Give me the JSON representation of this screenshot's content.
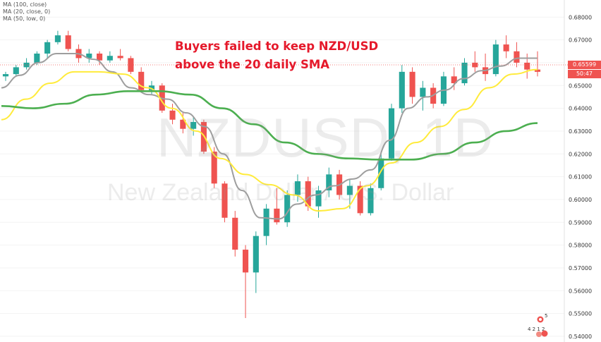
{
  "legend": [
    {
      "label": "MA (100, close)"
    },
    {
      "label": "MA (20, close, 0)"
    },
    {
      "label": "MA (50, low, 0)"
    }
  ],
  "headline": {
    "line1": "Buyers failed to keep NZD/USD",
    "line2": "above the 20 daily SMA"
  },
  "watermark": {
    "symbol": "NZDUSD, 1D",
    "name": "New Zealand Dollar / U.S. Dollar"
  },
  "last_price": {
    "value": "0.65599",
    "countdown": "50:47",
    "color": "#ef5350"
  },
  "badges": {
    "top": "5",
    "bottom": "4 2 1 2"
  },
  "colors": {
    "bull": "#26a69a",
    "bear": "#ef5350",
    "ma20": "#9e9e9e",
    "ma50": "#ffeb3b",
    "ma100": "#4caf50",
    "axis_text": "#333333",
    "headline": "#e5192b"
  },
  "chart_data": {
    "type": "candlestick",
    "y_axis": {
      "range": [
        0.5375,
        0.6875
      ],
      "ticks": [
        "0.68000",
        "0.67000",
        "0.66000",
        "0.65000",
        "0.64000",
        "0.63000",
        "0.62000",
        "0.61000",
        "0.60000",
        "0.59000",
        "0.58000",
        "0.57000",
        "0.56000",
        "0.55000",
        "0.54000"
      ],
      "tick_values": [
        0.68,
        0.67,
        0.66,
        0.65,
        0.64,
        0.63,
        0.62,
        0.61,
        0.6,
        0.59,
        0.58,
        0.57,
        0.56,
        0.55,
        0.54
      ]
    },
    "series": [
      {
        "name": "MA (20, close, 0)",
        "color": "#9e9e9e",
        "values": [
          0.649,
          0.6545,
          0.66,
          0.664,
          0.664,
          0.6615,
          0.656,
          0.649,
          0.646,
          0.644,
          0.638,
          0.632,
          0.62,
          0.604,
          0.592,
          0.5915,
          0.598,
          0.602,
          0.606,
          0.609,
          0.613,
          0.626,
          0.64,
          0.645,
          0.648,
          0.653,
          0.6565,
          0.6585,
          0.662,
          0.662
        ]
      },
      {
        "name": "MA (50, low, 0)",
        "color": "#ffeb3b",
        "values": [
          0.635,
          0.644,
          0.651,
          0.656,
          0.656,
          0.655,
          0.649,
          0.64,
          0.63,
          0.618,
          0.611,
          0.6065,
          0.602,
          0.595,
          0.596,
          0.606,
          0.616,
          0.625,
          0.632,
          0.6395,
          0.649,
          0.655,
          0.657
        ]
      },
      {
        "name": "MA (100, close)",
        "color": "#4caf50",
        "values": [
          0.641,
          0.64,
          0.642,
          0.646,
          0.6475,
          0.6475,
          0.646,
          0.64,
          0.633,
          0.625,
          0.62,
          0.618,
          0.6175,
          0.6175,
          0.62,
          0.625,
          0.63,
          0.6335
        ]
      }
    ],
    "candles_ohlc_estimated": [
      [
        0.654,
        0.656,
        0.652,
        0.655
      ],
      [
        0.655,
        0.659,
        0.654,
        0.658
      ],
      [
        0.658,
        0.662,
        0.657,
        0.66
      ],
      [
        0.66,
        0.665,
        0.659,
        0.664
      ],
      [
        0.664,
        0.67,
        0.662,
        0.669
      ],
      [
        0.669,
        0.674,
        0.668,
        0.672
      ],
      [
        0.672,
        0.674,
        0.665,
        0.666
      ],
      [
        0.666,
        0.668,
        0.66,
        0.662
      ],
      [
        0.662,
        0.666,
        0.66,
        0.664
      ],
      [
        0.664,
        0.665,
        0.659,
        0.661
      ],
      [
        0.661,
        0.665,
        0.66,
        0.663
      ],
      [
        0.663,
        0.666,
        0.661,
        0.662
      ],
      [
        0.662,
        0.663,
        0.655,
        0.656
      ],
      [
        0.656,
        0.658,
        0.647,
        0.648
      ],
      [
        0.648,
        0.652,
        0.646,
        0.65
      ],
      [
        0.65,
        0.651,
        0.638,
        0.639
      ],
      [
        0.639,
        0.642,
        0.633,
        0.635
      ],
      [
        0.635,
        0.638,
        0.629,
        0.631
      ],
      [
        0.631,
        0.636,
        0.628,
        0.634
      ],
      [
        0.634,
        0.635,
        0.62,
        0.621
      ],
      [
        0.621,
        0.623,
        0.605,
        0.607
      ],
      [
        0.607,
        0.608,
        0.59,
        0.592
      ],
      [
        0.592,
        0.595,
        0.575,
        0.578
      ],
      [
        0.578,
        0.58,
        0.548,
        0.568
      ],
      [
        0.568,
        0.586,
        0.559,
        0.584
      ],
      [
        0.584,
        0.598,
        0.58,
        0.596
      ],
      [
        0.596,
        0.605,
        0.589,
        0.59
      ],
      [
        0.59,
        0.604,
        0.588,
        0.602
      ],
      [
        0.602,
        0.611,
        0.599,
        0.608
      ],
      [
        0.608,
        0.61,
        0.595,
        0.597
      ],
      [
        0.597,
        0.606,
        0.592,
        0.604
      ],
      [
        0.604,
        0.614,
        0.601,
        0.611
      ],
      [
        0.611,
        0.613,
        0.6,
        0.602
      ],
      [
        0.602,
        0.609,
        0.596,
        0.606
      ],
      [
        0.606,
        0.608,
        0.593,
        0.594
      ],
      [
        0.594,
        0.607,
        0.593,
        0.605
      ],
      [
        0.605,
        0.62,
        0.604,
        0.618
      ],
      [
        0.618,
        0.642,
        0.617,
        0.64
      ],
      [
        0.64,
        0.659,
        0.638,
        0.656
      ],
      [
        0.656,
        0.658,
        0.642,
        0.645
      ],
      [
        0.645,
        0.652,
        0.639,
        0.649
      ],
      [
        0.649,
        0.651,
        0.64,
        0.642
      ],
      [
        0.642,
        0.656,
        0.641,
        0.654
      ],
      [
        0.654,
        0.658,
        0.648,
        0.651
      ],
      [
        0.651,
        0.662,
        0.65,
        0.66
      ],
      [
        0.66,
        0.665,
        0.656,
        0.658
      ],
      [
        0.658,
        0.664,
        0.652,
        0.655
      ],
      [
        0.655,
        0.67,
        0.654,
        0.668
      ],
      [
        0.668,
        0.672,
        0.662,
        0.665
      ],
      [
        0.665,
        0.669,
        0.658,
        0.66
      ],
      [
        0.66,
        0.664,
        0.653,
        0.657
      ],
      [
        0.657,
        0.665,
        0.654,
        0.656
      ]
    ]
  }
}
